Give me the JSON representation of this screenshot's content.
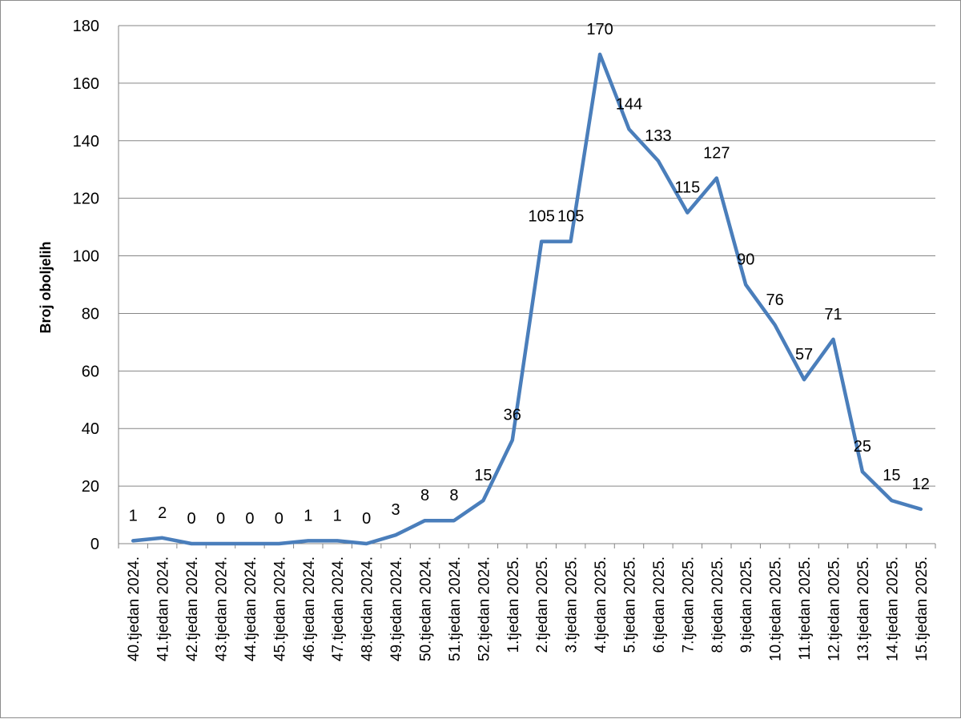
{
  "chart_data": {
    "type": "line",
    "title": "",
    "xlabel": "",
    "ylabel": "Broj oboljelih",
    "ylim": [
      0,
      180
    ],
    "yticks": [
      0,
      20,
      40,
      60,
      80,
      100,
      120,
      140,
      160,
      180
    ],
    "grid": true,
    "legend": "none",
    "line_color": "#4a7ebb",
    "categories": [
      "40.tjedan 2024.",
      "41.tjedan 2024.",
      "42.tjedan 2024.",
      "43.tjedan 2024.",
      "44.tjedan 2024.",
      "45.tjedan 2024.",
      "46.tjedan 2024.",
      "47.tjedan 2024.",
      "48.tjedan 2024.",
      "49.tjedan 2024.",
      "50.tjedan 2024.",
      "51.tjedan 2024.",
      "52.tjedan 2024.",
      "1.tjedan 2025.",
      "2.tjedan 2025.",
      "3.tjedan 2025.",
      "4.tjedan 2025.",
      "5.tjedan 2025.",
      "6.tjedan 2025.",
      "7.tjedan 2025.",
      "8.tjedan 2025.",
      "9.tjedan 2025.",
      "10.tjedan 2025.",
      "11.tjedan 2025.",
      "12.tjedan 2025.",
      "13.tjedan 2025.",
      "14.tjedan 2025.",
      "15.tjedan 2025."
    ],
    "values": [
      1,
      2,
      0,
      0,
      0,
      0,
      1,
      1,
      0,
      3,
      8,
      8,
      15,
      36,
      105,
      105,
      170,
      144,
      133,
      115,
      127,
      90,
      76,
      57,
      71,
      25,
      15,
      12
    ]
  }
}
